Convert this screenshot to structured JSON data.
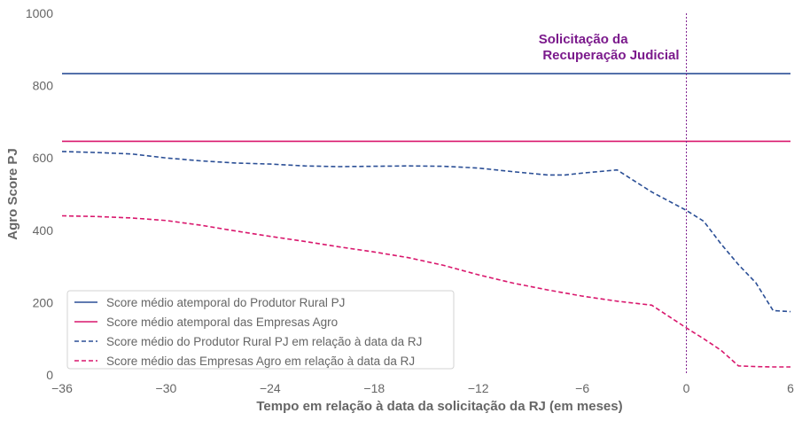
{
  "chart_data": {
    "type": "line",
    "xlabel": "Tempo em relação à data da solicitação da RJ (em meses)",
    "ylabel": "Agro Score PJ",
    "xlim": [
      -36,
      6
    ],
    "ylim": [
      0,
      1000
    ],
    "x_ticks": [
      -36,
      -30,
      -24,
      -18,
      -12,
      -6,
      0,
      6
    ],
    "x_tick_labels": [
      "−36",
      "−30",
      "−24",
      "−18",
      "−12",
      "−6",
      "0",
      "6"
    ],
    "y_ticks": [
      0,
      200,
      400,
      600,
      800,
      1000
    ],
    "y_tick_labels": [
      "0",
      "200",
      "400",
      "600",
      "800",
      "1000"
    ],
    "grid": false,
    "legend_position": "bottom-left",
    "annotation": {
      "lines": [
        "Solicitação da",
        "Recuperação Judicial"
      ],
      "x": 0,
      "color": "#7b1a8c"
    },
    "series": [
      {
        "name": "Score médio atemporal do Produtor Rural PJ",
        "style": "solid",
        "color": "#2b4f96",
        "x": [
          -36,
          6
        ],
        "y": [
          833,
          833
        ]
      },
      {
        "name": "Score médio atemporal das Empresas Agro",
        "style": "solid",
        "color": "#d9176d",
        "x": [
          -36,
          6
        ],
        "y": [
          646,
          646
        ]
      },
      {
        "name": "Score médio do Produtor Rural PJ em relação à data da RJ",
        "style": "dashed",
        "color": "#2b4f96",
        "x": [
          -36,
          -34,
          -32,
          -30,
          -28,
          -26,
          -24,
          -22,
          -20,
          -18,
          -16,
          -14,
          -12,
          -10,
          -8,
          -7,
          -6,
          -4,
          -2,
          0,
          1,
          2,
          3,
          4,
          5,
          6
        ],
        "y": [
          618,
          615,
          611,
          600,
          592,
          586,
          583,
          578,
          576,
          577,
          578,
          577,
          572,
          562,
          553,
          553,
          558,
          567,
          506,
          455,
          425,
          362,
          305,
          255,
          178,
          175
        ]
      },
      {
        "name": "Score médio das Empresas Agro em relação à data da RJ",
        "style": "dashed",
        "color": "#d9176d",
        "x": [
          -36,
          -34,
          -32,
          -30,
          -28,
          -26,
          -24,
          -22,
          -20,
          -18,
          -16,
          -14,
          -12,
          -10,
          -8,
          -6,
          -4,
          -2,
          0,
          1,
          2,
          3,
          4,
          5,
          6
        ],
        "y": [
          440,
          438,
          434,
          427,
          414,
          398,
          383,
          369,
          354,
          340,
          324,
          303,
          277,
          254,
          235,
          218,
          204,
          193,
          130,
          100,
          68,
          25,
          23,
          22,
          22
        ]
      }
    ]
  }
}
